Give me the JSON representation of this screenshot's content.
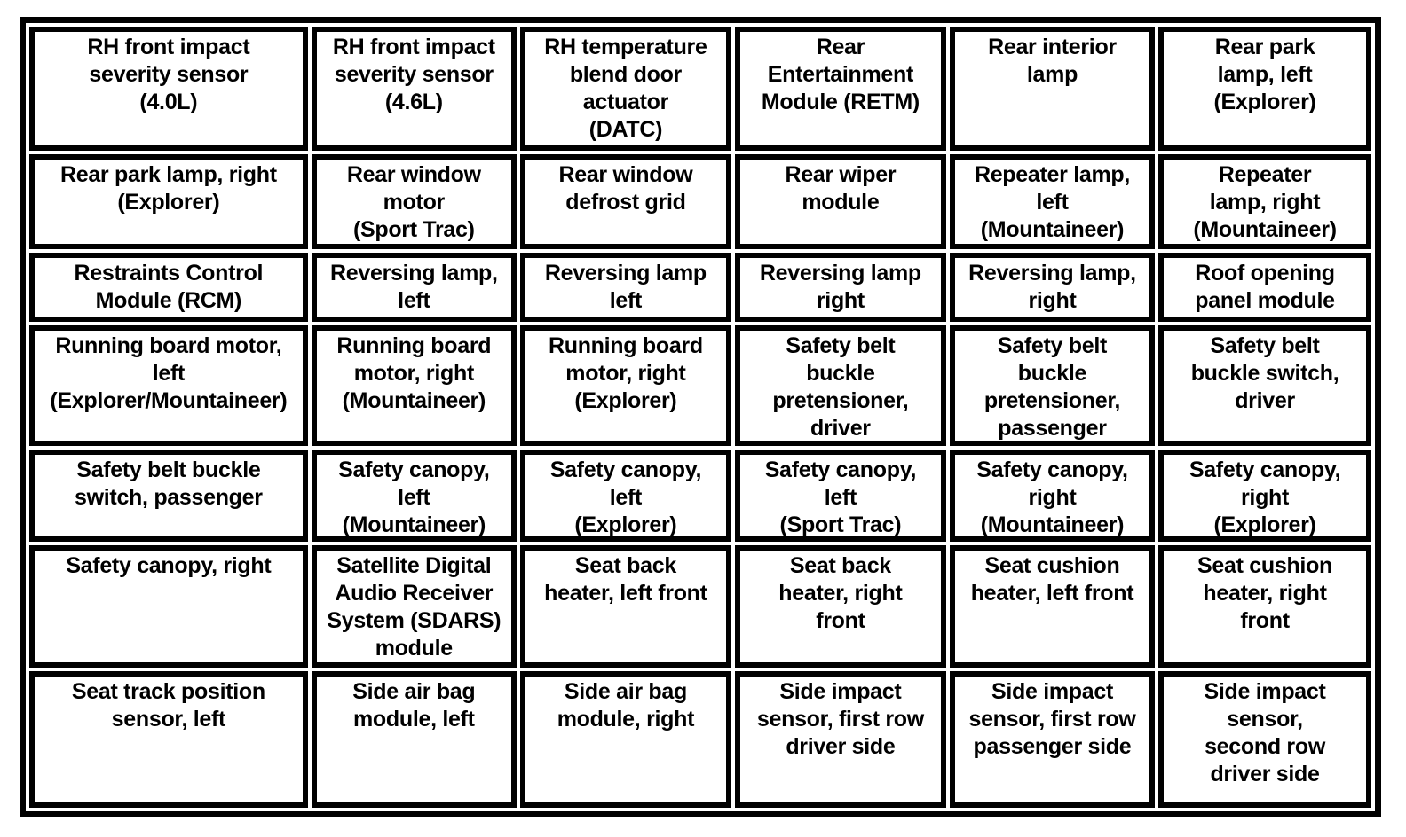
{
  "page": {
    "background_color": "#ffffff",
    "border_color": "#000000",
    "text_color": "#000000"
  },
  "table": {
    "rows": [
      {
        "cells": [
          "RH front impact\nseverity sensor\n(4.0L)",
          "RH front impact\nseverity sensor\n(4.6L)",
          "RH temperature\nblend door\nactuator\n(DATC)",
          "Rear\nEntertainment\nModule (RETM)",
          "Rear interior\nlamp",
          "Rear park\nlamp, left\n(Explorer)"
        ]
      },
      {
        "cells": [
          "Rear park lamp, right\n(Explorer)",
          "Rear window\nmotor\n(Sport Trac)",
          "Rear window\ndefrost grid",
          "Rear wiper\nmodule",
          "Repeater lamp,\nleft\n(Mountaineer)",
          "Repeater\nlamp, right\n(Mountaineer)"
        ]
      },
      {
        "cells": [
          "Restraints Control\nModule (RCM)",
          "Reversing lamp,\nleft",
          "Reversing lamp\nleft",
          "Reversing lamp\nright",
          "Reversing lamp,\nright",
          "Roof opening\npanel module"
        ]
      },
      {
        "cells": [
          "Running board motor,\nleft\n(Explorer/Mountaineer)",
          "Running board\nmotor, right\n(Mountaineer)",
          "Running board\nmotor, right\n(Explorer)",
          "Safety belt\nbuckle\npretensioner,\ndriver",
          "Safety belt\nbuckle\npretensioner,\npassenger",
          "Safety belt\nbuckle switch,\ndriver"
        ]
      },
      {
        "cells": [
          "Safety belt buckle\nswitch, passenger",
          "Safety canopy,\nleft\n(Mountaineer)",
          "Safety canopy,\nleft\n(Explorer)",
          "Safety canopy,\nleft\n(Sport Trac)",
          "Safety canopy,\nright\n(Mountaineer)",
          "Safety canopy,\nright\n(Explorer)"
        ]
      },
      {
        "cells": [
          "Safety canopy, right",
          "Satellite Digital\nAudio Receiver\nSystem (SDARS)\nmodule",
          "Seat back\nheater, left front",
          "Seat back\nheater, right\nfront",
          "Seat cushion\nheater, left front",
          "Seat cushion\nheater, right\nfront"
        ]
      },
      {
        "cells": [
          "Seat track position\nsensor, left",
          "Side air bag\nmodule, left",
          "Side air bag\nmodule, right",
          "Side impact\nsensor, first row\ndriver side",
          "Side impact\nsensor, first row\npassenger side",
          "Side impact\nsensor,\nsecond row\ndriver side"
        ]
      }
    ]
  }
}
